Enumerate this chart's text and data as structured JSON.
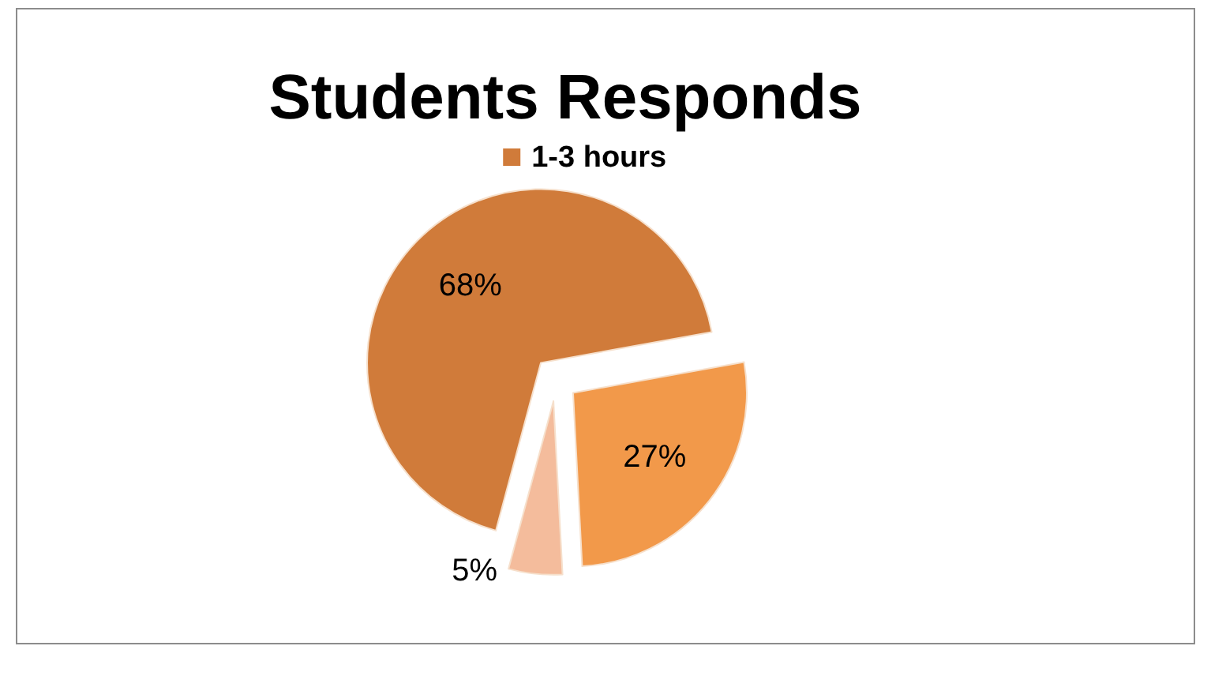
{
  "chart_data": {
    "type": "pie",
    "title": "Students Responds",
    "categories": [
      "1-3 hours",
      null,
      null
    ],
    "values": [
      68,
      27,
      5
    ],
    "colors": [
      "#d07b3a",
      "#f2994a",
      "#f4bc9c"
    ],
    "value_labels": [
      "68%",
      "27%",
      "5%"
    ],
    "legend": "top"
  }
}
